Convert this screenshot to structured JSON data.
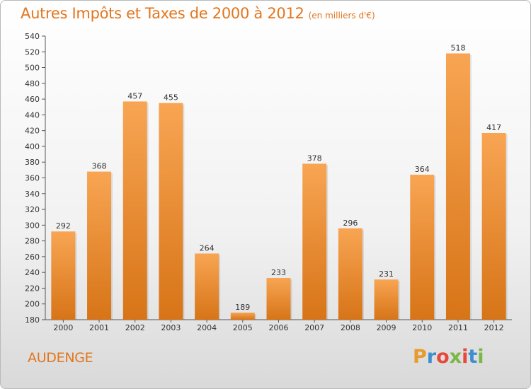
{
  "header": {
    "title": "Autres Impôts et Taxes de 2000 à 2012",
    "subtitle": "(en milliers d'€)"
  },
  "commune": "AUDENGE",
  "logo": {
    "letters": [
      "P",
      "r",
      "o",
      "x",
      "i",
      "t",
      "i"
    ],
    "colors": [
      "#e89a2c",
      "#3f8fd0",
      "#e8473a",
      "#7ab648",
      "#e8473a",
      "#3f8fd0",
      "#7ab648"
    ]
  },
  "chart_data": {
    "type": "bar",
    "categories": [
      "2000",
      "2001",
      "2002",
      "2003",
      "2004",
      "2005",
      "2006",
      "2007",
      "2008",
      "2009",
      "2010",
      "2011",
      "2012"
    ],
    "values": [
      292,
      368,
      457,
      455,
      264,
      189,
      233,
      378,
      296,
      231,
      364,
      518,
      417
    ],
    "ylim": [
      180,
      540
    ],
    "yticks": [
      180,
      200,
      220,
      240,
      260,
      280,
      300,
      320,
      340,
      360,
      380,
      400,
      420,
      440,
      460,
      480,
      500,
      520,
      540
    ],
    "grid": false,
    "bar_color_top": "#f8a553",
    "bar_color_bottom": "#d77417"
  }
}
